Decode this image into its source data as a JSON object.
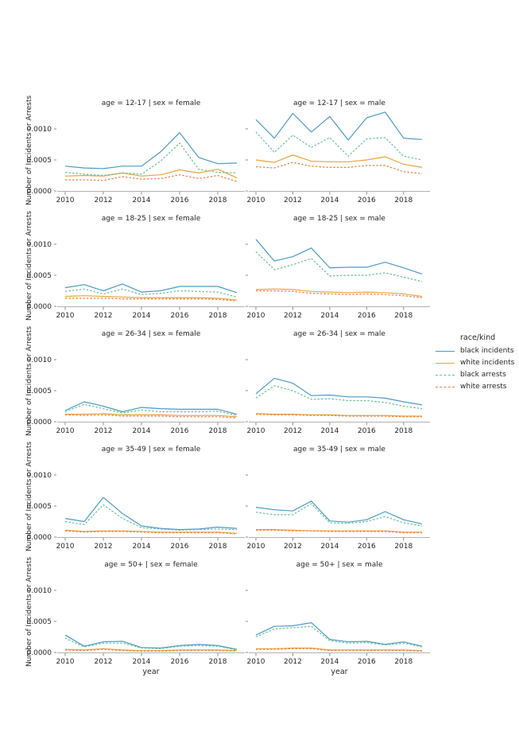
{
  "figure": {
    "xlabel": "year",
    "ylabel": "Number of Incidents or Arrests",
    "x_ticks": [
      2010,
      2012,
      2014,
      2016,
      2018
    ],
    "y_ticks": [
      0,
      0.0005,
      0.001
    ],
    "y_tick_labels": [
      "0.0000",
      "0.0005",
      "0.0010"
    ],
    "ylim": [
      0,
      0.00131
    ],
    "grid": false,
    "legend": {
      "title": "race/kind",
      "position": "right",
      "entries": [
        {
          "label": "black incidents",
          "color": "#4c9ac9",
          "dash": "solid"
        },
        {
          "label": "white incidents",
          "color": "#eaa43c",
          "dash": "solid"
        },
        {
          "label": "black arrests",
          "color": "#63c295",
          "dash": "dashed"
        },
        {
          "label": "white arrests",
          "color": "#e5824d",
          "dash": "dashed"
        }
      ]
    }
  },
  "chart_data": [
    {
      "type": "line",
      "title": "age = 12-17 | sex = female",
      "age": "12-17",
      "sex": "female",
      "row": 0,
      "col": 0,
      "x": [
        2010,
        2011,
        2012,
        2013,
        2014,
        2015,
        2016,
        2017,
        2018,
        2019
      ],
      "series": [
        {
          "name": "black incidents",
          "values": [
            0.0004,
            0.00037,
            0.00036,
            0.0004,
            0.0004,
            0.00063,
            0.00094,
            0.00054,
            0.00044,
            0.00045
          ]
        },
        {
          "name": "white incidents",
          "values": [
            0.00024,
            0.00025,
            0.00024,
            0.00029,
            0.00024,
            0.00026,
            0.00034,
            0.00029,
            0.00035,
            0.00021
          ]
        },
        {
          "name": "black arrests",
          "values": [
            0.0003,
            0.00027,
            0.00025,
            0.00029,
            0.00027,
            0.00048,
            0.00077,
            0.00035,
            0.0003,
            0.00029
          ]
        },
        {
          "name": "white arrests",
          "values": [
            0.00018,
            0.00018,
            0.00017,
            0.00023,
            0.00019,
            0.0002,
            0.00026,
            0.0002,
            0.00025,
            0.00015
          ]
        }
      ]
    },
    {
      "type": "line",
      "title": "age = 12-17 | sex = male",
      "age": "12-17",
      "sex": "male",
      "row": 0,
      "col": 1,
      "x": [
        2010,
        2011,
        2012,
        2013,
        2014,
        2015,
        2016,
        2017,
        2018,
        2019
      ],
      "series": [
        {
          "name": "black incidents",
          "values": [
            0.00115,
            0.00085,
            0.00125,
            0.00095,
            0.0012,
            0.00082,
            0.00118,
            0.00127,
            0.00085,
            0.00083
          ]
        },
        {
          "name": "white incidents",
          "values": [
            0.0005,
            0.00046,
            0.00058,
            0.00048,
            0.00047,
            0.00047,
            0.0005,
            0.00055,
            0.00043,
            0.00038
          ]
        },
        {
          "name": "black arrests",
          "values": [
            0.00095,
            0.00062,
            0.0009,
            0.0007,
            0.00086,
            0.00056,
            0.00084,
            0.00086,
            0.00056,
            0.0005
          ]
        },
        {
          "name": "white arrests",
          "values": [
            0.00039,
            0.00037,
            0.00046,
            0.0004,
            0.00038,
            0.00038,
            0.00041,
            0.00041,
            0.00031,
            0.00028
          ]
        }
      ]
    },
    {
      "type": "line",
      "title": "age = 18-25 | sex = female",
      "age": "18-25",
      "sex": "female",
      "row": 1,
      "col": 0,
      "x": [
        2010,
        2011,
        2012,
        2013,
        2014,
        2015,
        2016,
        2017,
        2018,
        2019
      ],
      "series": [
        {
          "name": "black incidents",
          "values": [
            0.0003,
            0.00035,
            0.00025,
            0.00036,
            0.00023,
            0.00025,
            0.00032,
            0.00032,
            0.00032,
            0.00022
          ]
        },
        {
          "name": "white incidents",
          "values": [
            0.00016,
            0.00017,
            0.00016,
            0.00015,
            0.00014,
            0.00014,
            0.00014,
            0.00014,
            0.00013,
            0.0001
          ]
        },
        {
          "name": "black arrests",
          "values": [
            0.00024,
            0.00028,
            0.0002,
            0.00028,
            0.00019,
            0.00021,
            0.00025,
            0.00024,
            0.00023,
            0.00015
          ]
        },
        {
          "name": "white arrests",
          "values": [
            0.00013,
            0.00013,
            0.00013,
            0.00012,
            0.00012,
            0.00012,
            0.00012,
            0.00012,
            0.00011,
            9e-05
          ]
        }
      ]
    },
    {
      "type": "line",
      "title": "age = 18-25 | sex = male",
      "age": "18-25",
      "sex": "male",
      "row": 1,
      "col": 1,
      "x": [
        2010,
        2011,
        2012,
        2013,
        2014,
        2015,
        2016,
        2017,
        2018,
        2019
      ],
      "series": [
        {
          "name": "black incidents",
          "values": [
            0.00108,
            0.00073,
            0.0008,
            0.00094,
            0.00062,
            0.00063,
            0.00063,
            0.00071,
            0.00062,
            0.00052
          ]
        },
        {
          "name": "white incidents",
          "values": [
            0.00027,
            0.00028,
            0.00027,
            0.00024,
            0.00023,
            0.00022,
            0.00023,
            0.00022,
            0.0002,
            0.00016
          ]
        },
        {
          "name": "black arrests",
          "values": [
            0.00088,
            0.00059,
            0.00067,
            0.00077,
            0.00049,
            0.0005,
            0.0005,
            0.00054,
            0.00047,
            0.0004
          ]
        },
        {
          "name": "white arrests",
          "values": [
            0.00025,
            0.00025,
            0.00024,
            0.00021,
            0.0002,
            0.00019,
            0.0002,
            0.00019,
            0.00017,
            0.00014
          ]
        }
      ]
    },
    {
      "type": "line",
      "title": "age = 26-34 | sex = female",
      "age": "26-34",
      "sex": "female",
      "row": 2,
      "col": 0,
      "x": [
        2010,
        2011,
        2012,
        2013,
        2014,
        2015,
        2016,
        2017,
        2018,
        2019
      ],
      "series": [
        {
          "name": "black incidents",
          "values": [
            0.00018,
            0.00032,
            0.00025,
            0.00016,
            0.00023,
            0.00021,
            0.0002,
            0.0002,
            0.0002,
            0.00012
          ]
        },
        {
          "name": "white incidents",
          "values": [
            0.00012,
            0.00012,
            0.00013,
            0.00011,
            0.00011,
            0.00011,
            0.0001,
            0.0001,
            0.0001,
            8e-05
          ]
        },
        {
          "name": "black arrests",
          "values": [
            0.00016,
            0.00028,
            0.00021,
            0.00014,
            0.00019,
            0.00016,
            0.00016,
            0.00016,
            0.00017,
            0.0001
          ]
        },
        {
          "name": "white arrests",
          "values": [
            0.00011,
            0.0001,
            0.00011,
            9e-05,
            9e-05,
            9e-05,
            8e-05,
            8e-05,
            8e-05,
            6e-05
          ]
        }
      ]
    },
    {
      "type": "line",
      "title": "age = 26-34 | sex = male",
      "age": "26-34",
      "sex": "male",
      "row": 2,
      "col": 1,
      "x": [
        2010,
        2011,
        2012,
        2013,
        2014,
        2015,
        2016,
        2017,
        2018,
        2019
      ],
      "series": [
        {
          "name": "black incidents",
          "values": [
            0.00045,
            0.0007,
            0.00062,
            0.00042,
            0.00043,
            0.0004,
            0.0004,
            0.00038,
            0.00032,
            0.00027
          ]
        },
        {
          "name": "white incidents",
          "values": [
            0.00013,
            0.00012,
            0.00012,
            0.00011,
            0.00011,
            0.0001,
            0.0001,
            0.0001,
            9e-05,
            9e-05
          ]
        },
        {
          "name": "black arrests",
          "values": [
            0.00038,
            0.00058,
            0.0005,
            0.00036,
            0.00037,
            0.00034,
            0.00034,
            0.00031,
            0.00025,
            0.00021
          ]
        },
        {
          "name": "white arrests",
          "values": [
            0.00012,
            0.00011,
            0.00011,
            0.0001,
            0.0001,
            9e-05,
            9e-05,
            9e-05,
            8e-05,
            8e-05
          ]
        }
      ]
    },
    {
      "type": "line",
      "title": "age = 35-49 | sex = female",
      "age": "35-49",
      "sex": "female",
      "row": 3,
      "col": 0,
      "x": [
        2010,
        2011,
        2012,
        2013,
        2014,
        2015,
        2016,
        2017,
        2018,
        2019
      ],
      "series": [
        {
          "name": "black incidents",
          "values": [
            0.0003,
            0.00025,
            0.00064,
            0.00038,
            0.00018,
            0.00014,
            0.00012,
            0.00013,
            0.00016,
            0.00014
          ]
        },
        {
          "name": "white incidents",
          "values": [
            0.00011,
            9e-05,
            0.0001,
            0.0001,
            9e-05,
            8e-05,
            8e-05,
            8e-05,
            8e-05,
            6e-05
          ]
        },
        {
          "name": "black arrests",
          "values": [
            0.00025,
            0.0002,
            0.00052,
            0.0003,
            0.00015,
            0.00013,
            0.00011,
            0.00012,
            0.00013,
            0.00012
          ]
        },
        {
          "name": "white arrests",
          "values": [
            0.0001,
            8e-05,
            9e-05,
            9e-05,
            8e-05,
            7e-05,
            7e-05,
            7e-05,
            7e-05,
            5e-05
          ]
        }
      ]
    },
    {
      "type": "line",
      "title": "age = 35-49 | sex = male",
      "age": "35-49",
      "sex": "male",
      "row": 3,
      "col": 1,
      "x": [
        2010,
        2011,
        2012,
        2013,
        2014,
        2015,
        2016,
        2017,
        2018,
        2019
      ],
      "series": [
        {
          "name": "black incidents",
          "values": [
            0.00048,
            0.00044,
            0.00042,
            0.00058,
            0.00026,
            0.00024,
            0.00028,
            0.00041,
            0.00028,
            0.00021
          ]
        },
        {
          "name": "white incidents",
          "values": [
            0.00012,
            0.00012,
            0.00011,
            0.0001,
            0.0001,
            0.0001,
            0.0001,
            0.0001,
            8e-05,
            8e-05
          ]
        },
        {
          "name": "black arrests",
          "values": [
            0.0004,
            0.00036,
            0.00036,
            0.00054,
            0.00023,
            0.00022,
            0.00025,
            0.00033,
            0.00023,
            0.00018
          ]
        },
        {
          "name": "white arrests",
          "values": [
            0.00011,
            0.00011,
            0.0001,
            0.0001,
            9e-05,
            9e-05,
            9e-05,
            9e-05,
            7e-05,
            7e-05
          ]
        }
      ]
    },
    {
      "type": "line",
      "title": "age = 50+ | sex = female",
      "age": "50+",
      "sex": "female",
      "row": 4,
      "col": 0,
      "x": [
        2010,
        2011,
        2012,
        2013,
        2014,
        2015,
        2016,
        2017,
        2018,
        2019
      ],
      "series": [
        {
          "name": "black incidents",
          "values": [
            0.00028,
            0.0001,
            0.00017,
            0.00018,
            8e-05,
            7e-05,
            0.00011,
            0.00013,
            0.00011,
            5e-05
          ]
        },
        {
          "name": "white incidents",
          "values": [
            5e-05,
            4e-05,
            6e-05,
            4e-05,
            3e-05,
            3e-05,
            4e-05,
            4e-05,
            4e-05,
            3e-05
          ]
        },
        {
          "name": "black arrests",
          "values": [
            0.00023,
            9e-05,
            0.00015,
            0.00015,
            7e-05,
            6e-05,
            0.0001,
            0.00011,
            0.0001,
            4e-05
          ]
        },
        {
          "name": "white arrests",
          "values": [
            4e-05,
            3e-05,
            5e-05,
            3e-05,
            2e-05,
            2e-05,
            3e-05,
            3e-05,
            3e-05,
            2e-05
          ]
        }
      ]
    },
    {
      "type": "line",
      "title": "age = 50+ | sex = male",
      "age": "50+",
      "sex": "male",
      "row": 4,
      "col": 1,
      "x": [
        2010,
        2011,
        2012,
        2013,
        2014,
        2015,
        2016,
        2017,
        2018,
        2019
      ],
      "series": [
        {
          "name": "black incidents",
          "values": [
            0.00028,
            0.00042,
            0.00043,
            0.00048,
            0.00021,
            0.00017,
            0.00018,
            0.00013,
            0.00017,
            0.0001
          ]
        },
        {
          "name": "white incidents",
          "values": [
            6e-05,
            6e-05,
            7e-05,
            7e-05,
            4e-05,
            4e-05,
            4e-05,
            4e-05,
            4e-05,
            3e-05
          ]
        },
        {
          "name": "black arrests",
          "values": [
            0.00025,
            0.00038,
            0.0004,
            0.00042,
            0.00019,
            0.00015,
            0.00016,
            0.00012,
            0.00015,
            9e-05
          ]
        },
        {
          "name": "white arrests",
          "values": [
            5e-05,
            5e-05,
            6e-05,
            6e-05,
            3e-05,
            3e-05,
            3e-05,
            3e-05,
            3e-05,
            2e-05
          ]
        }
      ]
    }
  ]
}
